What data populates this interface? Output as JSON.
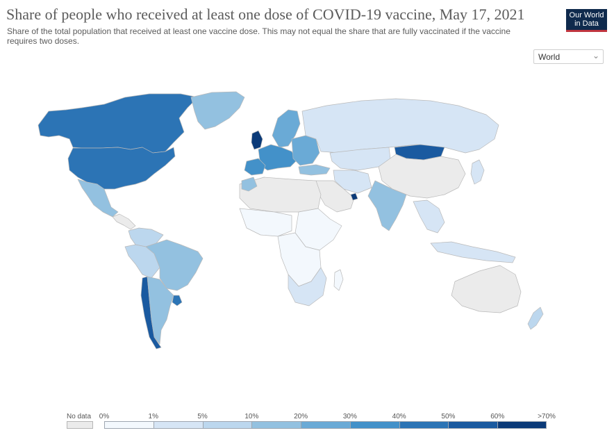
{
  "header": {
    "title": "Share of people who received at least one dose of COVID-19 vaccine, May 17, 2021",
    "subtitle": "Share of the total population that received at least one vaccine dose. This may not equal the share that are fully vaccinated if the vaccine requires two doses.",
    "logo_line1": "Our World",
    "logo_line2": "in Data",
    "logo_bg": "#0f2a4d",
    "logo_accent": "#c0353f"
  },
  "region_selector": {
    "selected": "World"
  },
  "colors": {
    "no_data": "#ebebeb",
    "ocean": "#ffffff",
    "border": "#b9b9b9"
  },
  "legend": {
    "no_data_label": "No data",
    "tick_labels": [
      "0%",
      "1%",
      "5%",
      "10%",
      "20%",
      "30%",
      "40%",
      "50%",
      "60%",
      ">70%"
    ],
    "bins": [
      {
        "from": "0%",
        "to": "1%",
        "color": "#f3f8fd"
      },
      {
        "from": "1%",
        "to": "5%",
        "color": "#d6e5f5"
      },
      {
        "from": "5%",
        "to": "10%",
        "color": "#bcd7ee"
      },
      {
        "from": "10%",
        "to": "20%",
        "color": "#93c1e0"
      },
      {
        "from": "20%",
        "to": "30%",
        "color": "#6aaad6"
      },
      {
        "from": "30%",
        "to": "40%",
        "color": "#4391c9"
      },
      {
        "from": "40%",
        "to": "50%",
        "color": "#2c74b5"
      },
      {
        "from": "50%",
        "to": "60%",
        "color": "#1a5aa0"
      },
      {
        "from": "60%",
        "to": ">70%",
        "color": "#0b3a78"
      }
    ]
  }
}
